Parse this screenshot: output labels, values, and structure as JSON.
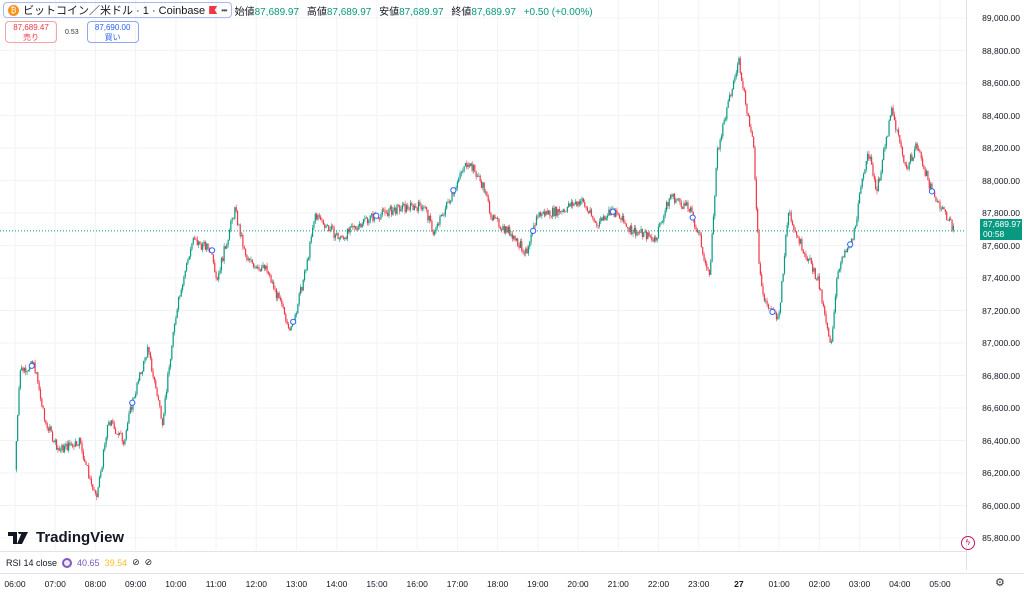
{
  "header": {
    "symbol_title": "ビットコイン／米ドル · 1 · Coinbase",
    "more_label": "•••",
    "ohlc": [
      {
        "label": "始値",
        "value": "87,689.97"
      },
      {
        "label": "高値",
        "value": "87,689.97"
      },
      {
        "label": "安値",
        "value": "87,689.97"
      },
      {
        "label": "終値",
        "value": "87,689.97"
      }
    ],
    "change": "+0.50 (+0.00%)"
  },
  "trade": {
    "sell_price": "87,689.47",
    "sell_label": "売り",
    "spread": "0.53",
    "buy_price": "87,690.00",
    "buy_label": "買い"
  },
  "price_axis": {
    "labels": [
      "89,000.00",
      "88,800.00",
      "88,600.00",
      "88,400.00",
      "88,200.00",
      "88,000.00",
      "87,800.00",
      "87,600.00",
      "87,400.00",
      "87,200.00",
      "87,000.00",
      "86,800.00",
      "86,600.00",
      "86,400.00",
      "86,200.00",
      "86,000.00",
      "85,800.00"
    ]
  },
  "current_price": {
    "value": "87,689.97",
    "countdown": "00:58",
    "price": 87689.97
  },
  "time_axis": {
    "labels": [
      "06:00",
      "07:00",
      "08:00",
      "09:00",
      "10:00",
      "11:00",
      "12:00",
      "13:00",
      "14:00",
      "15:00",
      "16:00",
      "17:00",
      "18:00",
      "19:00",
      "20:00",
      "21:00",
      "22:00",
      "23:00",
      "27",
      "01:00",
      "02:00",
      "03:00",
      "04:00",
      "05:00"
    ]
  },
  "logo": "TradingView",
  "rsi": {
    "label": "RSI 14 close",
    "value1": "40.65",
    "value2": "39.54"
  },
  "colors": {
    "up": "#089981",
    "down": "#f23645",
    "marker": "#2962ff"
  },
  "chart_data": {
    "type": "candlestick",
    "interval": "1",
    "ylim": [
      85800,
      89000
    ],
    "price_path": [
      [
        "06:00",
        86220
      ],
      [
        "06:07",
        86835
      ],
      [
        "06:29",
        86865
      ],
      [
        "06:44",
        86525
      ],
      [
        "07:06",
        86340
      ],
      [
        "07:36",
        86400
      ],
      [
        "08:01",
        86030
      ],
      [
        "08:20",
        86520
      ],
      [
        "08:42",
        86400
      ],
      [
        "08:56",
        86650
      ],
      [
        "09:18",
        86960
      ],
      [
        "09:40",
        86525
      ],
      [
        "10:03",
        87265
      ],
      [
        "10:25",
        87630
      ],
      [
        "10:54",
        87570
      ],
      [
        "11:01",
        87390
      ],
      [
        "11:28",
        87820
      ],
      [
        "11:45",
        87510
      ],
      [
        "12:15",
        87450
      ],
      [
        "12:52",
        87080
      ],
      [
        "13:14",
        87450
      ],
      [
        "13:28",
        87790
      ],
      [
        "14:05",
        87640
      ],
      [
        "14:42",
        87760
      ],
      [
        "15:26",
        87820
      ],
      [
        "16:10",
        87850
      ],
      [
        "16:25",
        87670
      ],
      [
        "16:54",
        87940
      ],
      [
        "17:16",
        88125
      ],
      [
        "17:38",
        87970
      ],
      [
        "17:53",
        87760
      ],
      [
        "18:22",
        87670
      ],
      [
        "18:44",
        87540
      ],
      [
        "18:59",
        87790
      ],
      [
        "19:36",
        87820
      ],
      [
        "20:05",
        87880
      ],
      [
        "20:27",
        87730
      ],
      [
        "20:49",
        87820
      ],
      [
        "21:19",
        87700
      ],
      [
        "21:55",
        87640
      ],
      [
        "22:18",
        87910
      ],
      [
        "22:47",
        87820
      ],
      [
        "23:02",
        87640
      ],
      [
        "23:16",
        87390
      ],
      [
        "23:28",
        88190
      ],
      [
        "00:00",
        88740
      ],
      [
        "00:22",
        88190
      ],
      [
        "00:30",
        87510
      ],
      [
        "00:37",
        87265
      ],
      [
        "00:59",
        87140
      ],
      [
        "01:14",
        87820
      ],
      [
        "01:29",
        87640
      ],
      [
        "01:58",
        87390
      ],
      [
        "02:17",
        86960
      ],
      [
        "02:27",
        87450
      ],
      [
        "02:50",
        87640
      ],
      [
        "03:12",
        88190
      ],
      [
        "03:26",
        87940
      ],
      [
        "03:48",
        88430
      ],
      [
        "04:10",
        88070
      ],
      [
        "04:25",
        88220
      ],
      [
        "04:47",
        87940
      ],
      [
        "05:09",
        87790
      ],
      [
        "05:21",
        87690
      ]
    ],
    "markers": [
      "06:25",
      "08:55",
      "10:54",
      "12:55",
      "14:59",
      "16:54",
      "18:53",
      "20:52",
      "22:51",
      "00:50",
      "02:46",
      "04:48"
    ]
  }
}
